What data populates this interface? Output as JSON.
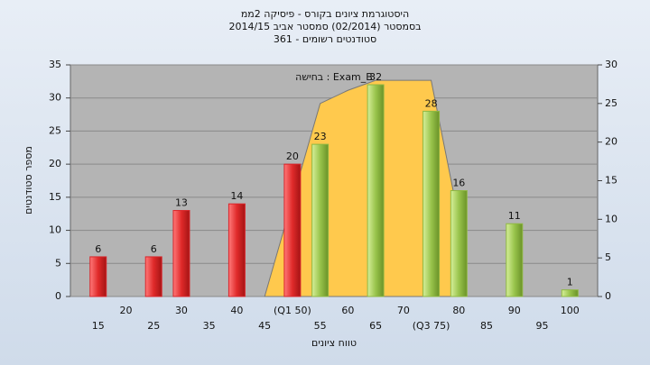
{
  "chart_data": {
    "type": "bar",
    "title": [
      "היסטוגרמת ציונים בקורס - פיסיקה 2ממ",
      "בסמסטר  (02/2014)  סמסטר אביב 2014/15",
      "361 - סטודנטים רשומים"
    ],
    "x_label": "טווח ציונים",
    "y_label": "מספר סטודנטים",
    "categories": [
      "15",
      "20",
      "25",
      "30",
      "35",
      "40",
      "45",
      "(Q1 50)",
      "55",
      "60",
      "65",
      "70",
      "(Q3 75)",
      "80",
      "85",
      "90",
      "95",
      "100"
    ],
    "values": [
      6,
      null,
      6,
      13,
      null,
      14,
      null,
      20,
      23,
      null,
      32,
      null,
      28,
      16,
      null,
      11,
      null,
      1
    ],
    "colors": [
      "#d9262b",
      null,
      "#d9262b",
      "#d9262b",
      null,
      "#d9262b",
      null,
      "#d9262b",
      "#8fb842",
      null,
      "#8fb842",
      null,
      "#8fb842",
      "#8fb842",
      null,
      "#8fb842",
      null,
      "#8fb842"
    ],
    "area": {
      "name": "בחישה : Exam_B",
      "color": "#ffc94d",
      "axis": "y2",
      "x": [
        "45",
        "55",
        "60",
        "65",
        "70",
        "(Q3 75)",
        "80"
      ],
      "values": [
        0,
        25,
        26.7,
        28,
        28,
        28,
        10
      ]
    },
    "ylim": [
      0,
      35
    ],
    "yticks": [
      0,
      5,
      10,
      15,
      20,
      25,
      30,
      35
    ],
    "y2lim": [
      0,
      30
    ],
    "y2ticks": [
      0,
      5,
      10,
      15,
      20,
      25,
      30
    ],
    "grid": true
  }
}
